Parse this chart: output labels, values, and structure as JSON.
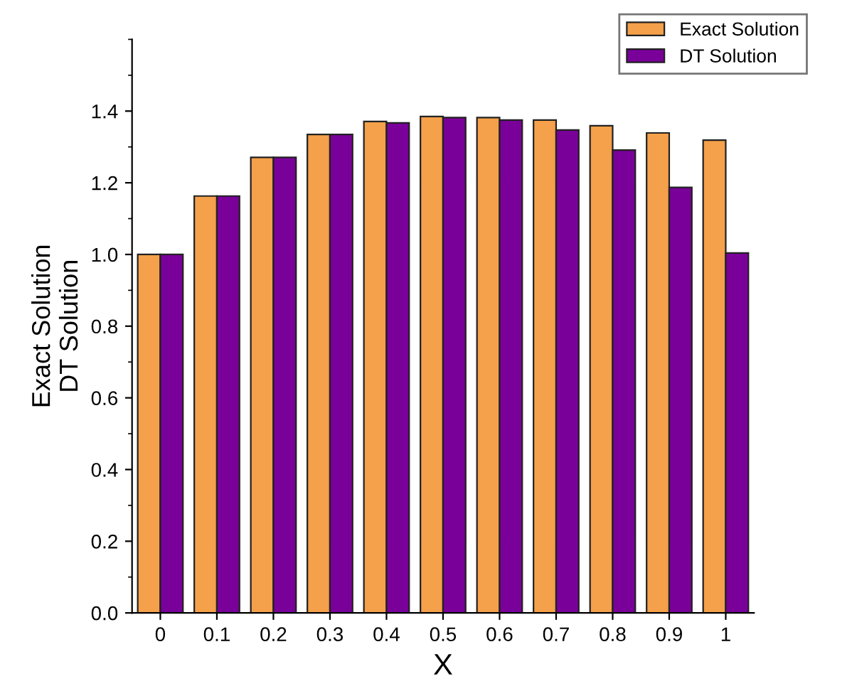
{
  "chart_data": {
    "type": "bar",
    "xlabel": "X",
    "ylabel": "Exact Solution\nDT Solution",
    "categories": [
      "0",
      "0.1",
      "0.2",
      "0.3",
      "0.4",
      "0.5",
      "0.6",
      "0.7",
      "0.8",
      "0.9",
      "1"
    ],
    "series": [
      {
        "name": "Exact Solution",
        "color": "#f5a04a",
        "values": [
          1.0,
          1.163,
          1.271,
          1.335,
          1.371,
          1.385,
          1.382,
          1.375,
          1.359,
          1.339,
          1.319
        ]
      },
      {
        "name": "DT Solution",
        "color": "#7a009a",
        "values": [
          1.0,
          1.163,
          1.271,
          1.335,
          1.367,
          1.382,
          1.375,
          1.347,
          1.291,
          1.187,
          1.004
        ]
      }
    ],
    "ylim": [
      0,
      1.6
    ],
    "yticks": [
      {
        "value": 0,
        "label": "0.0"
      },
      0.2,
      0.4,
      0.6,
      0.8,
      {
        "value": 1,
        "label": "1.0"
      },
      1.2,
      1.4
    ],
    "legend": "top right",
    "grid": false
  }
}
